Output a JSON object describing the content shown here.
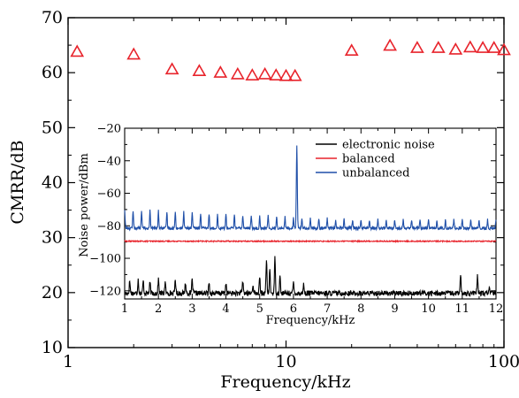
{
  "chart_data": [
    {
      "type": "scatter",
      "xlabel": "Frequency/kHz",
      "ylabel": "CMRR/dB",
      "xscale": "log",
      "xlim": [
        1,
        100
      ],
      "ylim": [
        10,
        70
      ],
      "x_ticks": [
        1,
        10,
        100
      ],
      "y_ticks": [
        10,
        20,
        30,
        40,
        50,
        60,
        70
      ],
      "x_tick_labels": [
        "1",
        "10",
        "100"
      ],
      "y_tick_labels": [
        "10",
        "20",
        "30",
        "40",
        "50",
        "60",
        "70"
      ],
      "marker": "open-triangle",
      "marker_color": "#e8242c",
      "points": [
        {
          "x": 1.1,
          "y": 63.8
        },
        {
          "x": 2.0,
          "y": 63.3
        },
        {
          "x": 3.0,
          "y": 60.6
        },
        {
          "x": 4.0,
          "y": 60.3
        },
        {
          "x": 5.0,
          "y": 60.0
        },
        {
          "x": 6.0,
          "y": 59.7
        },
        {
          "x": 7.0,
          "y": 59.5
        },
        {
          "x": 8.0,
          "y": 59.7
        },
        {
          "x": 9.0,
          "y": 59.5
        },
        {
          "x": 10.0,
          "y": 59.4
        },
        {
          "x": 11.0,
          "y": 59.4
        },
        {
          "x": 20.0,
          "y": 64.0
        },
        {
          "x": 30.0,
          "y": 64.9
        },
        {
          "x": 40.0,
          "y": 64.5
        },
        {
          "x": 50.0,
          "y": 64.5
        },
        {
          "x": 60.0,
          "y": 64.2
        },
        {
          "x": 70.0,
          "y": 64.6
        },
        {
          "x": 80.0,
          "y": 64.5
        },
        {
          "x": 90.0,
          "y": 64.5
        },
        {
          "x": 100.0,
          "y": 64.1
        }
      ]
    },
    {
      "type": "line",
      "xlabel": "Frequency/kHz",
      "ylabel": "Noise power/dBm",
      "xlim": [
        1,
        12
      ],
      "ylim": [
        -125,
        -20
      ],
      "x_ticks": [
        1,
        2,
        3,
        4,
        5,
        6,
        7,
        8,
        9,
        10,
        11,
        12
      ],
      "y_ticks": [
        -120,
        -100,
        -80,
        -60,
        -40,
        -20
      ],
      "x_tick_labels": [
        "1",
        "2",
        "3",
        "4",
        "5",
        "6",
        "7",
        "8",
        "9",
        "10",
        "11",
        "12"
      ],
      "y_tick_labels": [
        "−120",
        "−100",
        "−80",
        "−60",
        "−40",
        "−20"
      ],
      "legend_position": "top-right",
      "series": [
        {
          "name": "electronic noise",
          "color": "#000000",
          "baseline": -121.5,
          "noise_amplitude": 1.6,
          "peaks": [
            {
              "x": 1.15,
              "y": -114
            },
            {
              "x": 1.4,
              "y": -113
            },
            {
              "x": 1.55,
              "y": -114
            },
            {
              "x": 1.75,
              "y": -115
            },
            {
              "x": 2.0,
              "y": -113
            },
            {
              "x": 2.2,
              "y": -115
            },
            {
              "x": 2.5,
              "y": -113
            },
            {
              "x": 2.8,
              "y": -115
            },
            {
              "x": 3.0,
              "y": -113
            },
            {
              "x": 3.5,
              "y": -115
            },
            {
              "x": 4.0,
              "y": -115
            },
            {
              "x": 4.5,
              "y": -114
            },
            {
              "x": 4.8,
              "y": -116
            },
            {
              "x": 5.0,
              "y": -112
            },
            {
              "x": 5.2,
              "y": -101
            },
            {
              "x": 5.3,
              "y": -107
            },
            {
              "x": 5.45,
              "y": -100
            },
            {
              "x": 5.6,
              "y": -111
            },
            {
              "x": 6.0,
              "y": -115
            },
            {
              "x": 6.3,
              "y": -116
            },
            {
              "x": 10.95,
              "y": -111
            },
            {
              "x": 11.45,
              "y": -111
            },
            {
              "x": 11.8,
              "y": -117
            }
          ]
        },
        {
          "name": "balanced",
          "color": "#e8242c",
          "baseline": -89.5,
          "noise_amplitude": 0.35,
          "peaks": []
        },
        {
          "name": "unbalanced",
          "color": "#1f4fa8",
          "baseline": -81.5,
          "noise_amplitude": 0.9,
          "harmonic_spacing": 0.25,
          "harmonic_start": 1.0,
          "harmonic_peak_early": -70,
          "harmonic_peak_late": -76.5,
          "peaks": [
            {
              "x": 6.1,
              "y": -30
            }
          ]
        }
      ]
    }
  ]
}
